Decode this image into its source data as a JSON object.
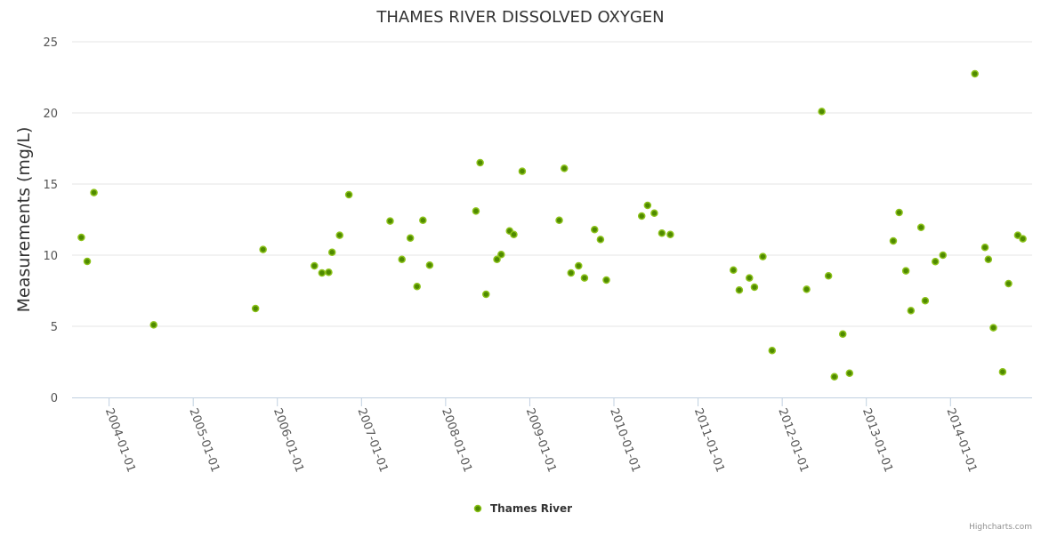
{
  "chart_data": {
    "type": "scatter",
    "title": "THAMES RIVER DISSOLVED OXYGEN",
    "xlabel": "",
    "ylabel": "Measurements (mg/L)",
    "ylim": [
      0,
      25
    ],
    "xlim": [
      2003.56,
      2014.97
    ],
    "y_ticks": [
      "0",
      "5",
      "10",
      "15",
      "20",
      "25"
    ],
    "y_tick_values": [
      0,
      5,
      10,
      15,
      20,
      25
    ],
    "x_ticks": [
      "2004-01-01",
      "2005-01-01",
      "2006-01-01",
      "2007-01-01",
      "2008-01-01",
      "2009-01-01",
      "2010-01-01",
      "2011-01-01",
      "2012-01-01",
      "2013-01-01",
      "2014-01-01"
    ],
    "x_tick_values": [
      2004,
      2005,
      2006,
      2007,
      2008,
      2009,
      2010,
      2011,
      2012,
      2013,
      2014
    ],
    "grid": true,
    "legend_position": "bottom-center",
    "series": [
      {
        "name": "Thames River",
        "color": "#6aa800",
        "x": [
          2003.67,
          2003.74,
          2003.82,
          2004.53,
          2005.74,
          2005.83,
          2006.44,
          2006.53,
          2006.61,
          2006.65,
          2006.74,
          2006.85,
          2007.34,
          2007.48,
          2007.58,
          2007.66,
          2007.73,
          2007.81,
          2008.36,
          2008.41,
          2008.48,
          2008.61,
          2008.66,
          2008.76,
          2008.81,
          2008.91,
          2009.35,
          2009.41,
          2009.49,
          2009.58,
          2009.65,
          2009.77,
          2009.84,
          2009.91,
          2010.33,
          2010.4,
          2010.48,
          2010.57,
          2010.67,
          2011.42,
          2011.49,
          2011.61,
          2011.67,
          2011.77,
          2011.88,
          2012.29,
          2012.47,
          2012.55,
          2012.62,
          2012.72,
          2012.8,
          2013.32,
          2013.39,
          2013.47,
          2013.53,
          2013.65,
          2013.7,
          2013.82,
          2013.91,
          2014.29,
          2014.41,
          2014.45,
          2014.51,
          2014.62,
          2014.69,
          2014.8,
          2014.86
        ],
        "y": [
          11.25,
          9.56,
          14.4,
          5.1,
          6.25,
          10.4,
          9.25,
          8.75,
          8.8,
          10.2,
          11.4,
          14.25,
          12.4,
          9.7,
          11.2,
          7.8,
          12.45,
          9.3,
          13.1,
          16.5,
          7.25,
          9.7,
          10.05,
          11.7,
          11.45,
          15.9,
          12.45,
          16.1,
          8.75,
          9.25,
          8.4,
          11.8,
          11.1,
          8.25,
          12.75,
          13.5,
          12.95,
          11.55,
          11.45,
          8.95,
          7.55,
          8.4,
          7.75,
          9.9,
          3.3,
          7.6,
          20.1,
          8.55,
          1.45,
          4.45,
          1.7,
          11.0,
          13.0,
          8.9,
          6.1,
          11.95,
          6.8,
          9.55,
          10.0,
          22.75,
          10.55,
          9.7,
          4.9,
          1.8,
          8.0,
          11.4,
          11.15
        ]
      }
    ],
    "credits": "Highcharts.com"
  }
}
